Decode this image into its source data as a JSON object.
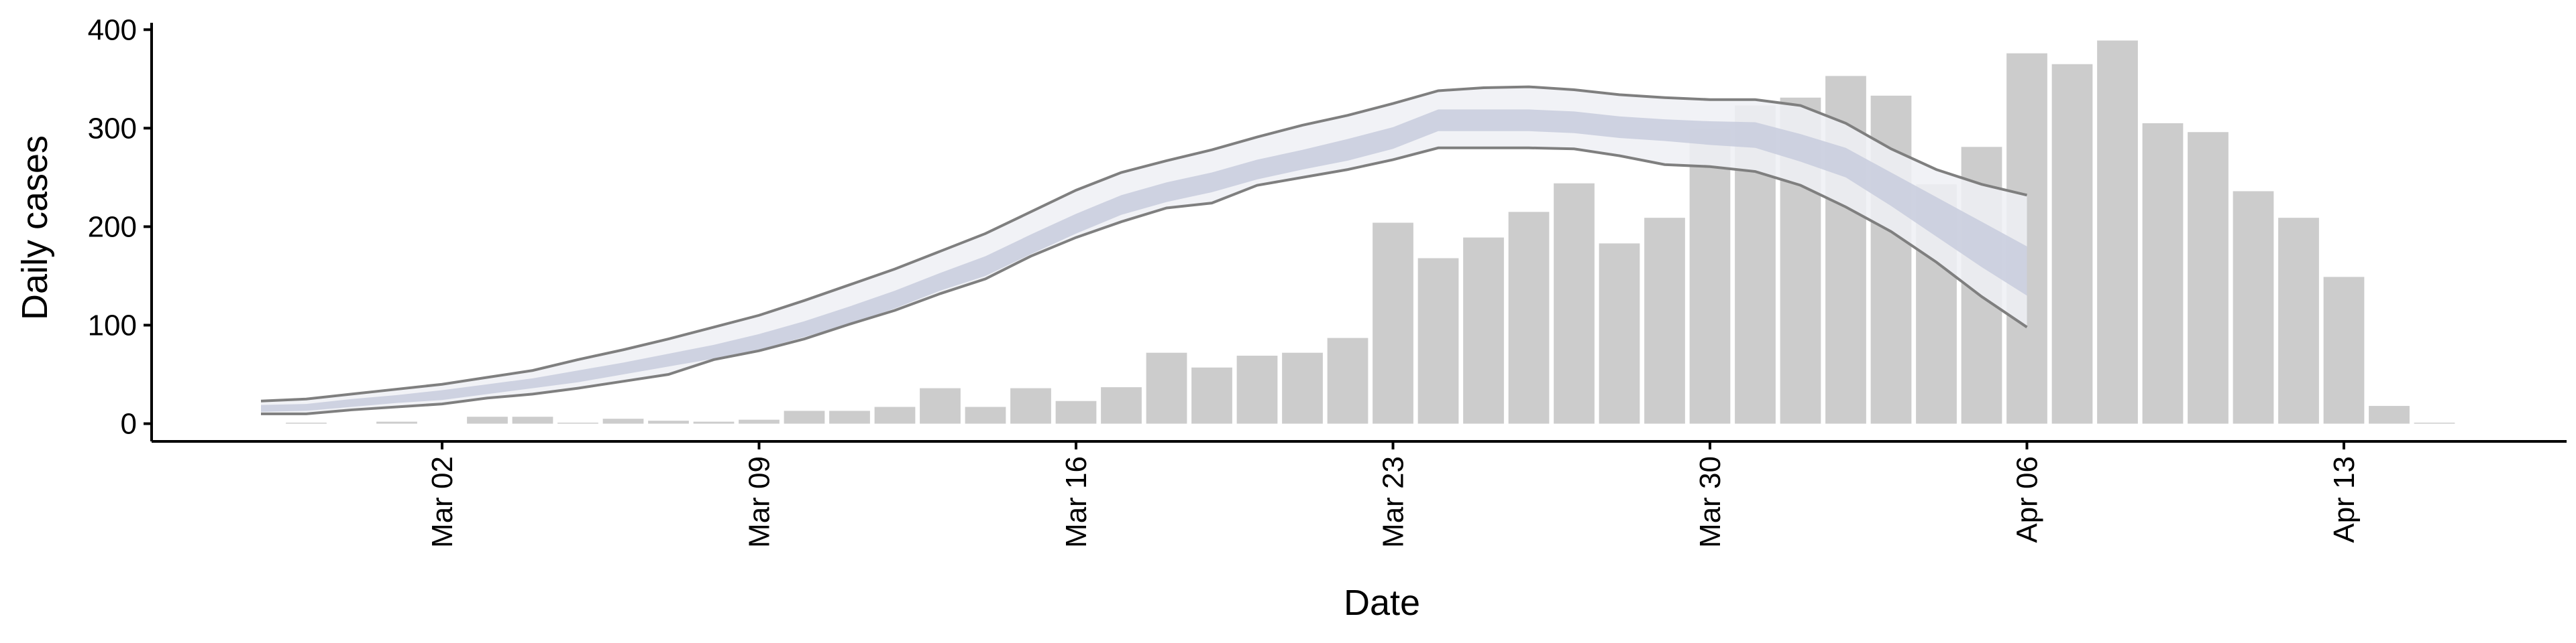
{
  "chart_data": {
    "type": "bar",
    "xlabel": "Date",
    "ylabel": "Daily cases",
    "categories": [
      "Feb 27",
      "Feb 28",
      "Feb 29",
      "Mar 01",
      "Mar 02",
      "Mar 03",
      "Mar 04",
      "Mar 05",
      "Mar 06",
      "Mar 07",
      "Mar 08",
      "Mar 09",
      "Mar 10",
      "Mar 11",
      "Mar 12",
      "Mar 13",
      "Mar 14",
      "Mar 15",
      "Mar 16",
      "Mar 17",
      "Mar 18",
      "Mar 19",
      "Mar 20",
      "Mar 21",
      "Mar 22",
      "Mar 23",
      "Mar 24",
      "Mar 25",
      "Mar 26",
      "Mar 27",
      "Mar 28",
      "Mar 29",
      "Mar 30",
      "Mar 31",
      "Apr 01",
      "Apr 02",
      "Apr 03",
      "Apr 04",
      "Apr 05",
      "Apr 06",
      "Apr 07",
      "Apr 08",
      "Apr 09",
      "Apr 10",
      "Apr 11",
      "Apr 12",
      "Apr 13",
      "Apr 14",
      "Apr 15"
    ],
    "values": [
      0,
      1,
      0,
      2,
      0,
      7,
      7,
      1,
      5,
      3,
      2,
      4,
      13,
      13,
      17,
      36,
      17,
      36,
      23,
      37,
      72,
      57,
      69,
      72,
      87,
      204,
      168,
      189,
      215,
      244,
      183,
      209,
      300,
      323,
      331,
      353,
      333,
      243,
      281,
      376,
      365,
      389,
      305,
      296,
      236,
      209,
      149,
      18,
      1
    ],
    "color": "#cccccc",
    "bands": {
      "upper_90": [
        23,
        25,
        30,
        35,
        40,
        47,
        54,
        65,
        75,
        86,
        98,
        110,
        125,
        141,
        157,
        175,
        193,
        215,
        237,
        255,
        267,
        278,
        291,
        303,
        313,
        325,
        338,
        341,
        342,
        339,
        334,
        331,
        329,
        329,
        323,
        305,
        279,
        258,
        243,
        232,
        null,
        null,
        null,
        null,
        null,
        null,
        null,
        null,
        null
      ],
      "lower_90": [
        10,
        10,
        14,
        17,
        20,
        26,
        30,
        36,
        43,
        50,
        65,
        74,
        86,
        101,
        115,
        132,
        147,
        170,
        189,
        205,
        219,
        224,
        242,
        250,
        258,
        268,
        280,
        280,
        280,
        279,
        272,
        263,
        261,
        256,
        242,
        220,
        195,
        164,
        129,
        98,
        null,
        null,
        null,
        null,
        null,
        null,
        null,
        null,
        null
      ],
      "upper_50": [
        19,
        20,
        25,
        29,
        34,
        40,
        46,
        54,
        62,
        71,
        80,
        91,
        104,
        119,
        135,
        153,
        170,
        192,
        213,
        232,
        245,
        255,
        268,
        278,
        289,
        301,
        319,
        319,
        319,
        317,
        312,
        309,
        307,
        306,
        294,
        280,
        255,
        230,
        205,
        180,
        null,
        null,
        null,
        null,
        null,
        null,
        null,
        null,
        null
      ],
      "lower_50": [
        12,
        13,
        17,
        21,
        24,
        30,
        36,
        42,
        50,
        58,
        66,
        75,
        88,
        101,
        117,
        135,
        150,
        172,
        193,
        212,
        225,
        235,
        248,
        258,
        267,
        279,
        297,
        297,
        297,
        295,
        290,
        287,
        283,
        280,
        266,
        250,
        221,
        190,
        159,
        130,
        null,
        null,
        null,
        null,
        null,
        null,
        null,
        null,
        null
      ],
      "outer_color": "#eef0f5",
      "inner_color": "#c8cddd",
      "line_color": "#7f7f7f"
    },
    "ylim": [
      -18,
      407
    ],
    "yticks": [
      0,
      100,
      200,
      300,
      400
    ],
    "xticks": [
      "Mar 02",
      "Mar 09",
      "Mar 16",
      "Mar 23",
      "Mar 30",
      "Apr 06",
      "Apr 13"
    ]
  }
}
